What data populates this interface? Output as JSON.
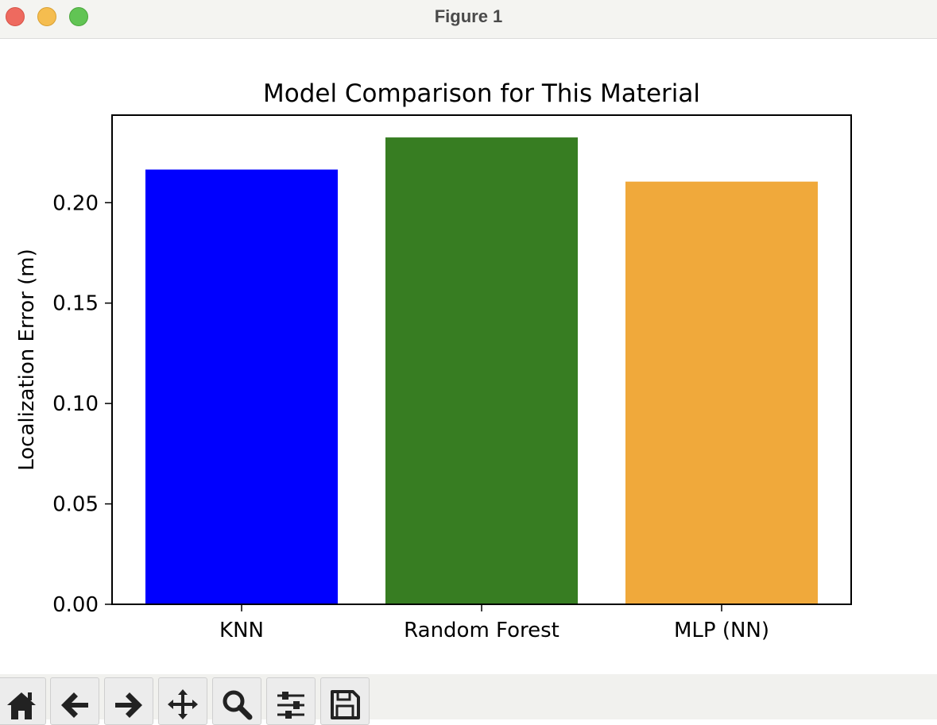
{
  "window": {
    "title": "Figure 1"
  },
  "toolbar": {
    "tools": [
      {
        "name": "home-icon"
      },
      {
        "name": "back-arrow-icon"
      },
      {
        "name": "forward-arrow-icon"
      },
      {
        "name": "pan-move-icon"
      },
      {
        "name": "zoom-magnifier-icon"
      },
      {
        "name": "configure-subplots-icon"
      },
      {
        "name": "save-floppy-icon"
      }
    ]
  },
  "chart_data": {
    "type": "bar",
    "title": "Model Comparison for This Material",
    "xlabel": "",
    "ylabel": "Localization Error (m)",
    "categories": [
      "KNN",
      "Random Forest",
      "MLP (NN)"
    ],
    "values": [
      0.2165,
      0.2325,
      0.2105
    ],
    "colors": [
      "#0000ff",
      "#377d22",
      "#f0a93b"
    ],
    "ylim": [
      0,
      0.2436
    ],
    "yticks": [
      0.0,
      0.05,
      0.1,
      0.15,
      0.2
    ],
    "ytick_labels": [
      "0.00",
      "0.05",
      "0.10",
      "0.15",
      "0.20"
    ],
    "grid": false,
    "legend": "none"
  }
}
